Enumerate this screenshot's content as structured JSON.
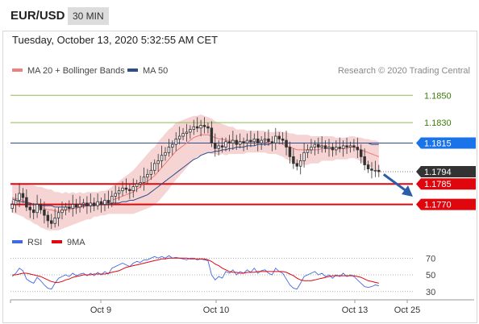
{
  "header": {
    "pair": "EUR/USD",
    "timeframe": "30 MIN"
  },
  "timestamp": "Tuesday, October 13, 2020 5:32:55 AM CET",
  "credit": "Research © 2020 Trading Central",
  "legend": {
    "bollinger": "MA 20 + Bollinger Bands",
    "ma50": "MA 50",
    "rsi": "RSI",
    "rsi_ma": "9MA"
  },
  "colors": {
    "green_line": "#8bbf4e",
    "blue_line": "#2a4f8a",
    "red_line": "#e0060e",
    "band_fill": "#f6cccc",
    "candle": "#333333",
    "rsi": "#4169e1",
    "rsi_ma": "#e0060e",
    "arrow": "#2a5ea8",
    "current_price_box": "#333333",
    "resistance_box": "#1a73e8"
  },
  "chart_data": [
    {
      "type": "candlestick",
      "ylim": [
        1.1752,
        1.1862
      ],
      "x_tick_labels": [
        "Oct 9",
        "Oct 10",
        "Oct 13",
        "Oct 25"
      ],
      "levels": [
        {
          "value": 1.185,
          "label": "1.1850",
          "style": "green"
        },
        {
          "value": 1.183,
          "label": "1.1830",
          "style": "green"
        },
        {
          "value": 1.1815,
          "label": "1.1815",
          "style": "blue-box"
        },
        {
          "value": 1.1794,
          "label": "1.1794",
          "style": "current-box"
        },
        {
          "value": 1.1785,
          "label": "1.1785",
          "style": "red-box"
        },
        {
          "value": 1.177,
          "label": "1.1770",
          "style": "red-box"
        }
      ],
      "close": [
        1.177,
        1.1773,
        1.1778,
        1.1775,
        1.1768,
        1.1766,
        1.1764,
        1.177,
        1.1766,
        1.1762,
        1.1758,
        1.1756,
        1.176,
        1.1764,
        1.1766,
        1.1768,
        1.1767,
        1.177,
        1.1768,
        1.177,
        1.1771,
        1.1769,
        1.1771,
        1.1769,
        1.1772,
        1.177,
        1.1773,
        1.1771,
        1.1776,
        1.1778,
        1.178,
        1.1782,
        1.1781,
        1.178,
        1.1783,
        1.1785,
        1.1786,
        1.179,
        1.1792,
        1.1795,
        1.18,
        1.1802,
        1.1806,
        1.1808,
        1.1812,
        1.1814,
        1.1818,
        1.182,
        1.1822,
        1.1823,
        1.1825,
        1.1827,
        1.1826,
        1.1828,
        1.1827,
        1.1826,
        1.1815,
        1.1811,
        1.1813,
        1.1812,
        1.1816,
        1.1815,
        1.1817,
        1.1814,
        1.1816,
        1.1815,
        1.1817,
        1.1816,
        1.1818,
        1.1815,
        1.1817,
        1.1818,
        1.1816,
        1.1815,
        1.182,
        1.1818,
        1.1817,
        1.1812,
        1.1805,
        1.18,
        1.1798,
        1.1802,
        1.1808,
        1.181,
        1.1812,
        1.1814,
        1.1812,
        1.1813,
        1.1811,
        1.1812,
        1.181,
        1.1812,
        1.1811,
        1.1813,
        1.1812,
        1.1813,
        1.1812,
        1.181,
        1.1805,
        1.1799,
        1.1796,
        1.1795,
        1.1795,
        1.1794
      ],
      "ma20": [
        1.1775,
        1.1774,
        1.1774,
        1.1773,
        1.1772,
        1.1771,
        1.177,
        1.1769,
        1.1768,
        1.1767,
        1.1766,
        1.1766,
        1.1765,
        1.1765,
        1.1765,
        1.1766,
        1.1766,
        1.1767,
        1.1767,
        1.1768,
        1.1768,
        1.1769,
        1.1769,
        1.177,
        1.177,
        1.1771,
        1.1771,
        1.1772,
        1.1773,
        1.1774,
        1.1775,
        1.1776,
        1.1777,
        1.1778,
        1.1779,
        1.1781,
        1.1783,
        1.1785,
        1.1787,
        1.1789,
        1.1791,
        1.1794,
        1.1797,
        1.18,
        1.1803,
        1.1806,
        1.1809,
        1.1811,
        1.1813,
        1.1815,
        1.1817,
        1.1819,
        1.182,
        1.1821,
        1.1821,
        1.1821,
        1.182,
        1.1819,
        1.1818,
        1.1818,
        1.1817,
        1.1817,
        1.1817,
        1.1816,
        1.1816,
        1.1816,
        1.1816,
        1.1816,
        1.1816,
        1.1816,
        1.1816,
        1.1816,
        1.1815,
        1.1815,
        1.1815,
        1.1815,
        1.1814,
        1.1813,
        1.1812,
        1.1811,
        1.181,
        1.181,
        1.181,
        1.181,
        1.181,
        1.181,
        1.181,
        1.1811,
        1.1811,
        1.1811,
        1.1811,
        1.1811,
        1.1811,
        1.1811,
        1.1811,
        1.1812,
        1.1812,
        1.1811,
        1.181,
        1.1809,
        1.1808,
        1.1807,
        1.1806,
        1.1805
      ],
      "band_width": [
        0.0011,
        0.0011,
        0.0012,
        0.0012,
        0.0013,
        0.0013,
        0.0014,
        0.0014,
        0.0015,
        0.0015,
        0.0015,
        0.0015,
        0.0014,
        0.0014,
        0.0013,
        0.0013,
        0.0012,
        0.0012,
        0.0011,
        0.0011,
        0.001,
        0.001,
        0.001,
        0.0009,
        0.0009,
        0.0009,
        0.0009,
        0.0009,
        0.001,
        0.0011,
        0.0012,
        0.0013,
        0.0014,
        0.0015,
        0.0016,
        0.0017,
        0.0018,
        0.0019,
        0.002,
        0.0021,
        0.0021,
        0.0022,
        0.0022,
        0.0022,
        0.0022,
        0.0021,
        0.0021,
        0.002,
        0.0019,
        0.0018,
        0.0017,
        0.0016,
        0.0015,
        0.0015,
        0.0014,
        0.0013,
        0.0013,
        0.0012,
        0.0012,
        0.0011,
        0.0011,
        0.001,
        0.001,
        0.0009,
        0.0009,
        0.0009,
        0.0008,
        0.0008,
        0.0008,
        0.0008,
        0.0008,
        0.0008,
        0.0008,
        0.0008,
        0.0008,
        0.0009,
        0.0009,
        0.001,
        0.001,
        0.0011,
        0.0011,
        0.0011,
        0.0011,
        0.0011,
        0.001,
        0.001,
        0.001,
        0.0009,
        0.0009,
        0.0009,
        0.0009,
        0.0008,
        0.0008,
        0.0008,
        0.0008,
        0.0008,
        0.0008,
        0.0008,
        0.0009,
        0.0009,
        0.001,
        0.001,
        0.0011,
        0.0011
      ],
      "ma50": [
        1.1774,
        1.1773,
        1.1772,
        1.1772,
        1.1771,
        1.1771,
        1.177,
        1.177,
        1.1769,
        1.1769,
        1.1769,
        1.1769,
        1.1768,
        1.1768,
        1.1768,
        1.1768,
        1.1768,
        1.1768,
        1.1768,
        1.1768,
        1.1769,
        1.1769,
        1.1769,
        1.1769,
        1.177,
        1.177,
        1.177,
        1.177,
        1.1771,
        1.1771,
        1.1771,
        1.1772,
        1.1772,
        1.1773,
        1.1773,
        1.1774,
        1.1775,
        1.1776,
        1.1777,
        1.1779,
        1.1781,
        1.1783,
        1.1785,
        1.1787,
        1.1789,
        1.1791,
        1.1793,
        1.1795,
        1.1797,
        1.1799,
        1.1801,
        1.1803,
        1.1804,
        1.1806,
        1.1807,
        1.1808,
        1.1808,
        1.1809,
        1.1809,
        1.181,
        1.181,
        1.1811,
        1.1811,
        1.1812,
        1.1812,
        1.1812,
        1.1813,
        1.1813,
        1.1813,
        1.1814,
        1.1814,
        1.1814,
        1.1814,
        1.1815,
        1.1815,
        1.1815,
        1.1815,
        1.1815,
        1.1815,
        1.1815,
        1.1815,
        1.1815,
        1.1815,
        1.1815,
        1.1815,
        1.1815,
        1.1815,
        1.1815,
        1.1815,
        1.1815,
        1.1815,
        1.1815,
        1.1815,
        1.1815,
        1.1815,
        1.1815,
        1.1815,
        1.1815,
        1.1815,
        1.1815,
        1.1815,
        1.1814,
        1.1814,
        1.1814
      ]
    },
    {
      "type": "line",
      "ylim": [
        24,
        78
      ],
      "y_tick_labels": [
        "70",
        "50",
        "30"
      ],
      "reference_levels": [
        70,
        50,
        30
      ],
      "rsi": [
        48,
        52,
        58,
        55,
        45,
        42,
        40,
        47,
        43,
        38,
        34,
        33,
        40,
        46,
        48,
        50,
        48,
        52,
        49,
        51,
        52,
        49,
        52,
        49,
        53,
        50,
        54,
        51,
        58,
        60,
        62,
        64,
        62,
        60,
        64,
        66,
        65,
        68,
        68,
        70,
        72,
        70,
        72,
        70,
        73,
        70,
        71,
        70,
        69,
        68,
        70,
        70,
        68,
        69,
        68,
        67,
        50,
        44,
        48,
        46,
        54,
        52,
        56,
        50,
        54,
        52,
        56,
        53,
        58,
        52,
        55,
        56,
        52,
        50,
        58,
        54,
        52,
        45,
        38,
        34,
        33,
        40,
        48,
        50,
        52,
        54,
        50,
        52,
        48,
        50,
        46,
        50,
        48,
        52,
        48,
        50,
        48,
        44,
        40,
        36,
        35,
        36,
        38,
        37
      ],
      "rsi_ma": [
        50,
        50,
        51,
        52,
        52,
        51,
        50,
        49,
        48,
        46,
        44,
        42,
        41,
        41,
        42,
        44,
        45,
        47,
        48,
        49,
        50,
        50,
        50,
        51,
        51,
        51,
        51,
        52,
        53,
        54,
        55,
        57,
        59,
        60,
        61,
        62,
        63,
        64,
        65,
        66,
        67,
        68,
        69,
        69,
        70,
        70,
        70,
        70,
        70,
        70,
        69,
        69,
        69,
        69,
        69,
        68,
        66,
        63,
        61,
        58,
        56,
        54,
        53,
        53,
        52,
        52,
        53,
        53,
        53,
        54,
        54,
        54,
        54,
        54,
        54,
        54,
        54,
        53,
        51,
        49,
        46,
        44,
        43,
        43,
        43,
        44,
        45,
        46,
        47,
        48,
        49,
        49,
        49,
        49,
        49,
        49,
        49,
        48,
        47,
        45,
        43,
        42,
        41,
        40
      ]
    }
  ]
}
